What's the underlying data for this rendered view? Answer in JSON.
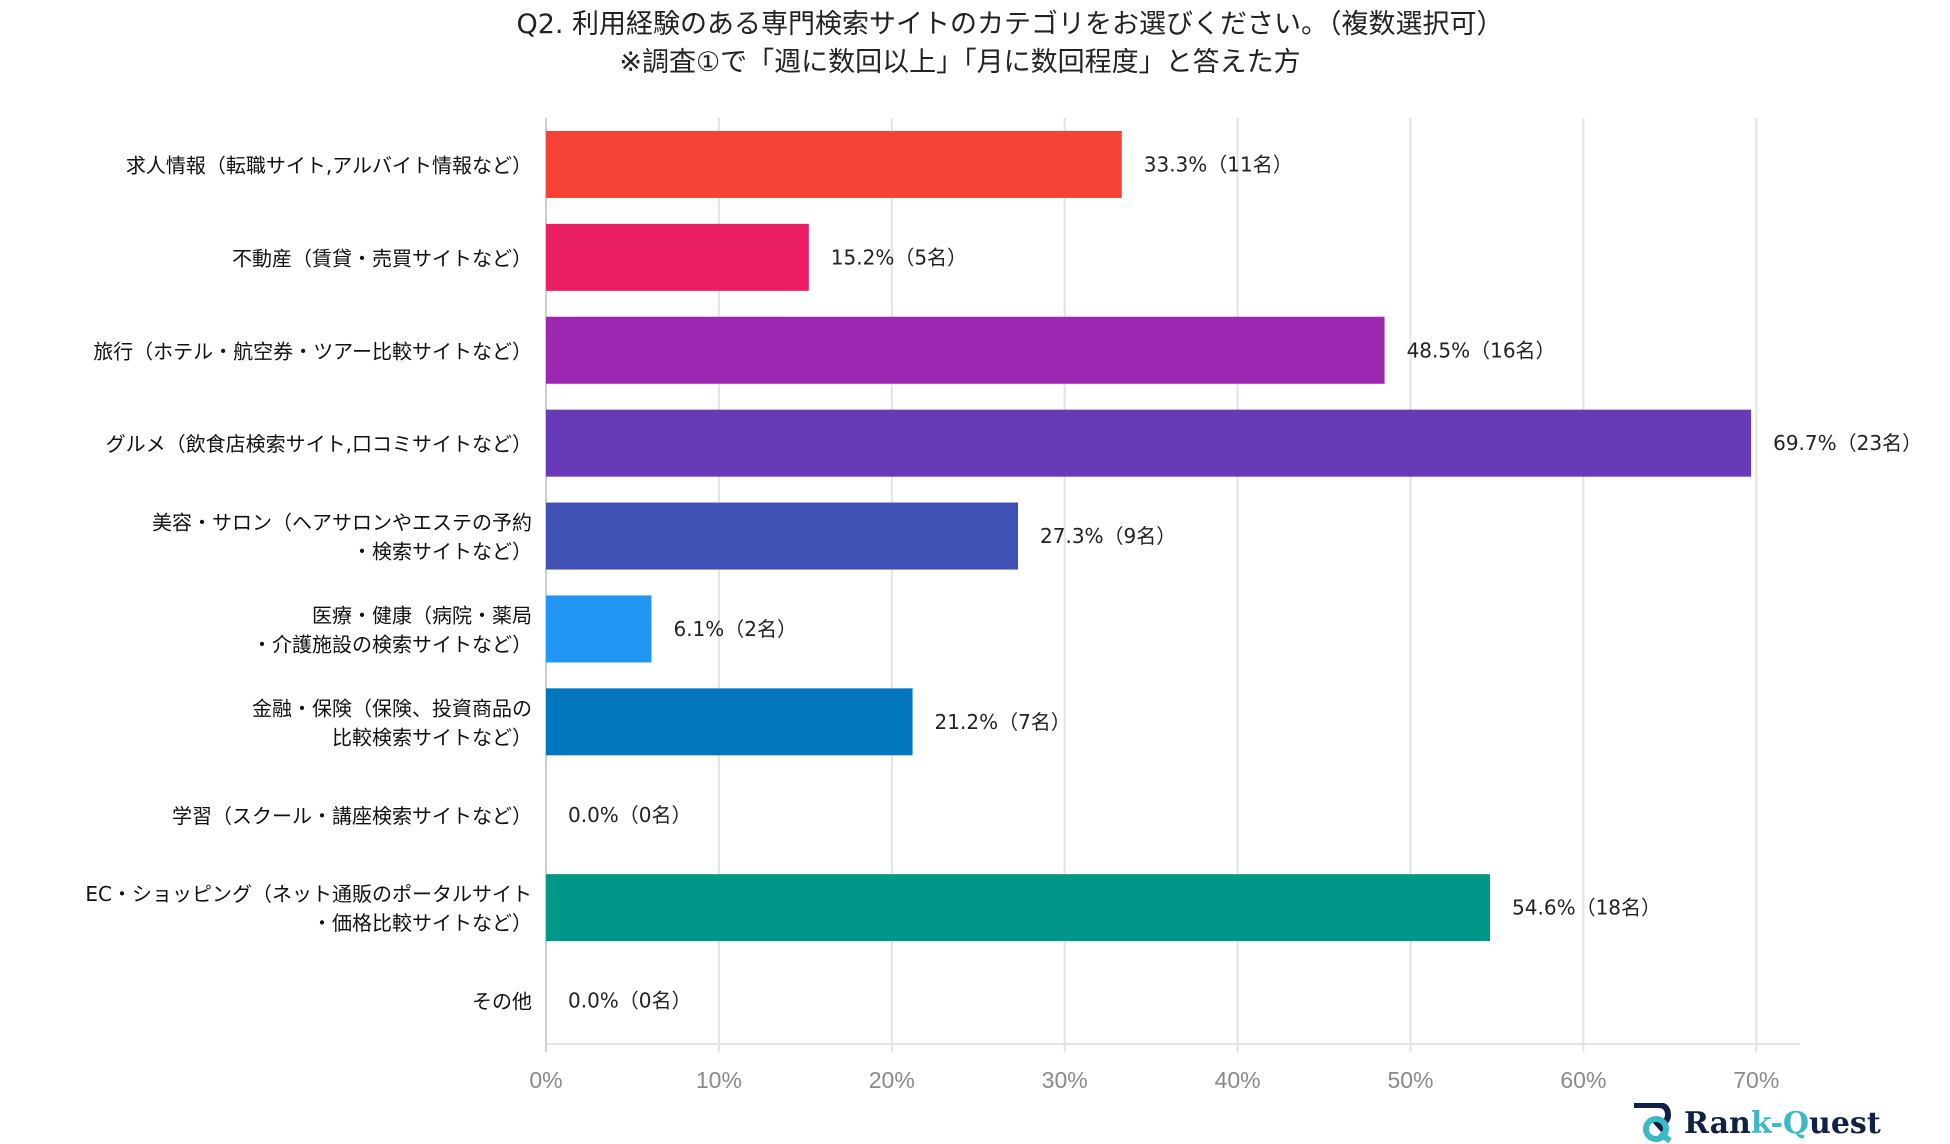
{
  "chart_data": {
    "type": "bar",
    "orientation": "horizontal",
    "title": "Q2. 利用経験のある専門検索サイトのカテゴリをお選びください。（複数選択可）",
    "subtitle": "※調査①で「週に数回以上」「月に数回程度」と答えた方",
    "xlabel": "",
    "ylabel": "",
    "xlim": [
      0,
      72.5
    ],
    "grid": true,
    "x_ticks": [
      "0%",
      "10%",
      "20%",
      "30%",
      "40%",
      "50%",
      "60%",
      "70%"
    ],
    "categories": [
      [
        "求人情報（転職サイト,アルバイト情報など）"
      ],
      [
        "不動産（賃貸・売買サイトなど）"
      ],
      [
        "旅行（ホテル・航空券・ツアー比較サイトなど）"
      ],
      [
        "グルメ（飲食店検索サイト,口コミサイトなど）"
      ],
      [
        "美容・サロン（ヘアサロンやエステの予約",
        "・検索サイトなど）"
      ],
      [
        "医療・健康（病院・薬局",
        "・介護施設の検索サイトなど）"
      ],
      [
        "金融・保険（保険、投資商品の",
        "比較検索サイトなど）"
      ],
      [
        "学習（スクール・講座検索サイトなど）"
      ],
      [
        "EC・ショッピング（ネット通販のポータルサイト",
        "・価格比較サイトなど）"
      ],
      [
        "その他"
      ]
    ],
    "values": [
      33.3,
      15.2,
      48.5,
      69.7,
      27.3,
      6.1,
      21.2,
      0.0,
      54.6,
      0.0
    ],
    "data_labels": [
      "33.3%（11名）",
      "15.2%（5名）",
      "48.5%（16名）",
      "69.7%（23名）",
      "27.3%（9名）",
      "6.1%（2名）",
      "21.2%（7名）",
      "0.0%（0名）",
      "54.6%（18名）",
      "0.0%（0名）"
    ],
    "colors": [
      "#f44336",
      "#e91e63",
      "#9c27b0",
      "#673ab7",
      "#3f51b5",
      "#2196f3",
      "#0277bd",
      "#26a69a",
      "#009688",
      "#8bc34a"
    ]
  },
  "logo": {
    "part1": "Ran",
    "part2": "k-Q",
    "part3": "uest",
    "accent": "#3bb9c6",
    "dark": "#0f2144"
  }
}
